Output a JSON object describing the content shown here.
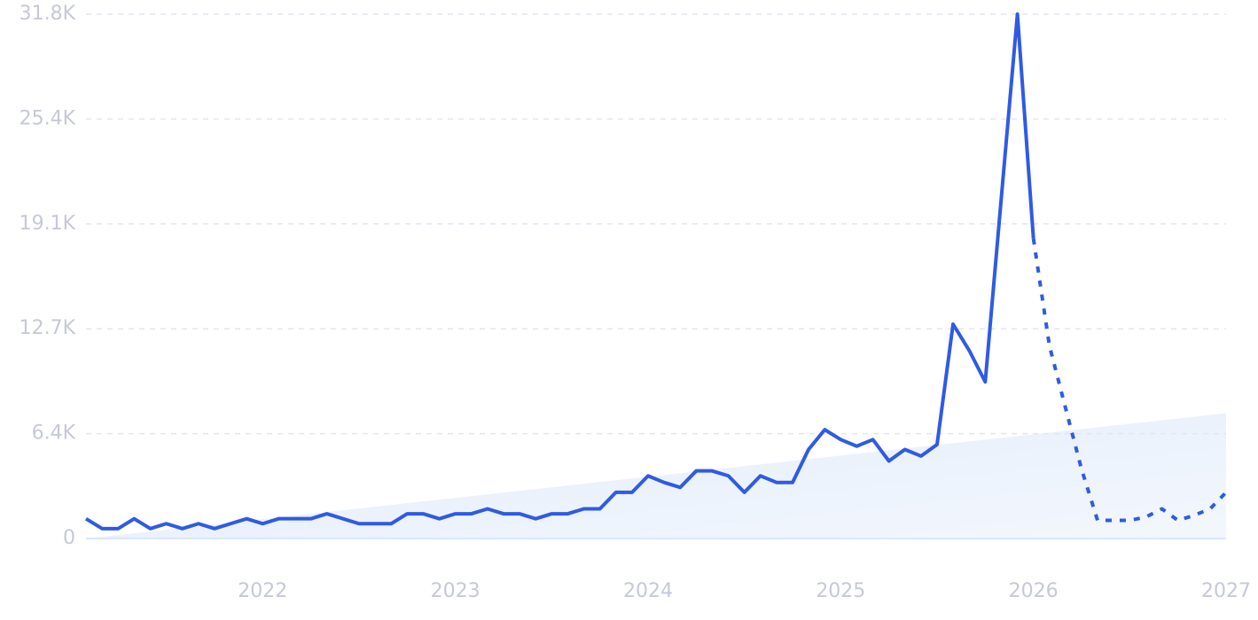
{
  "chart_data": {
    "type": "line",
    "x": [
      2021.083,
      2021.167,
      2021.25,
      2021.333,
      2021.417,
      2021.5,
      2021.583,
      2021.667,
      2021.75,
      2021.833,
      2021.917,
      2022,
      2022.083,
      2022.167,
      2022.25,
      2022.333,
      2022.417,
      2022.5,
      2022.583,
      2022.667,
      2022.75,
      2022.833,
      2022.917,
      2023,
      2023.083,
      2023.167,
      2023.25,
      2023.333,
      2023.417,
      2023.5,
      2023.583,
      2023.667,
      2023.75,
      2023.833,
      2023.917,
      2024,
      2024.083,
      2024.167,
      2024.25,
      2024.333,
      2024.417,
      2024.5,
      2024.583,
      2024.667,
      2024.75,
      2024.833,
      2024.917,
      2025,
      2025.083,
      2025.167,
      2025.25,
      2025.333,
      2025.417,
      2025.5,
      2025.583,
      2025.667,
      2025.75,
      2025.833,
      2025.917,
      2026,
      2026.083,
      2026.167,
      2026.25,
      2026.333,
      2026.417,
      2026.5,
      2026.583,
      2026.667,
      2026.75,
      2026.833,
      2026.917,
      2027
    ],
    "series": [
      {
        "color": "#2f5be3",
        "style": "solid",
        "values": [
          1200,
          600,
          600,
          1200,
          600,
          900,
          600,
          900,
          600,
          900,
          1200,
          900,
          1200,
          1200,
          1200,
          1500,
          1200,
          900,
          900,
          900,
          1500,
          1500,
          1200,
          1500,
          1500,
          1800,
          1500,
          1500,
          1200,
          1500,
          1500,
          1800,
          1800,
          2800,
          2800,
          3800,
          3400,
          3100,
          4100,
          4100,
          3800,
          2800,
          3800,
          3400,
          3400,
          5400,
          6600,
          6000,
          5600,
          6000,
          4700,
          5400,
          5000,
          5700,
          13000,
          11400,
          9500,
          20600,
          31800,
          18200,
          null,
          null,
          null,
          null,
          null,
          null,
          null,
          null,
          null,
          null,
          null,
          null
        ]
      },
      {
        "color": "#2f5be3",
        "style": "dotted",
        "values": [
          null,
          null,
          null,
          null,
          null,
          null,
          null,
          null,
          null,
          null,
          null,
          null,
          null,
          null,
          null,
          null,
          null,
          null,
          null,
          null,
          null,
          null,
          null,
          null,
          null,
          null,
          null,
          null,
          null,
          null,
          null,
          null,
          null,
          null,
          null,
          null,
          null,
          null,
          null,
          null,
          null,
          null,
          null,
          null,
          null,
          null,
          null,
          null,
          null,
          null,
          null,
          null,
          null,
          null,
          null,
          null,
          null,
          null,
          null,
          18200,
          11700,
          7900,
          4200,
          1100,
          1100,
          1100,
          1300,
          1800,
          1100,
          1400,
          1800,
          2800
        ]
      }
    ],
    "trend": {
      "x": [
        2021.083,
        2027
      ],
      "values": [
        0,
        7600
      ],
      "color": "#dce9fb"
    },
    "xlim": [
      2021.083,
      2027
    ],
    "xticks": [
      2022,
      2023,
      2024,
      2025,
      2026,
      2027
    ],
    "ylim": [
      0,
      31800
    ],
    "yticks": [
      0,
      {
        "value": 6360,
        "label": "6.4K"
      },
      {
        "value": 12720,
        "label": "12.7K"
      },
      {
        "value": 19080,
        "label": "19.1K"
      },
      {
        "value": 25440,
        "label": "25.4K"
      },
      {
        "value": 31800,
        "label": "31.8K"
      }
    ],
    "grid": true
  }
}
